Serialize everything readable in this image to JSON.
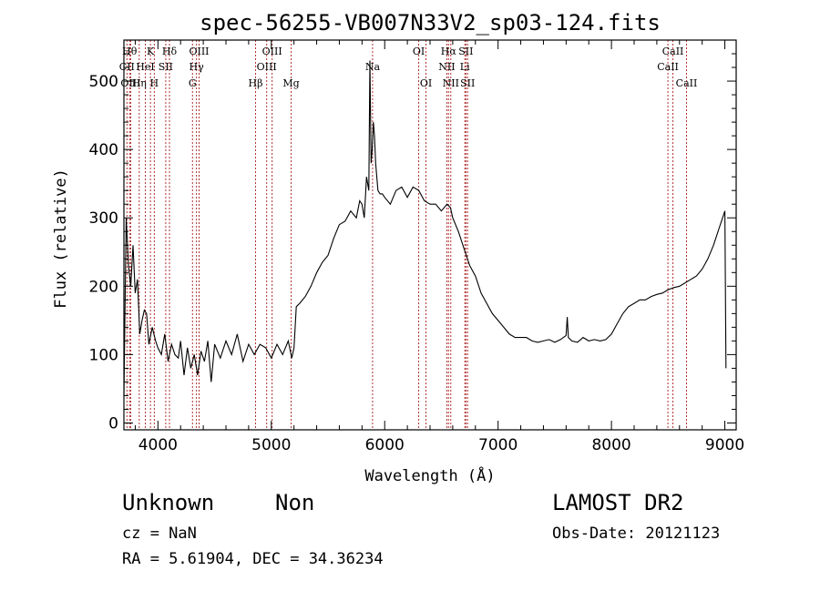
{
  "chart_data": {
    "type": "line",
    "title": "spec-56255-VB007N33V2_sp03-124.fits",
    "xlabel": "Wavelength (Å)",
    "ylabel": "Flux (relative)",
    "xlim": [
      3700,
      9100
    ],
    "ylim": [
      -10,
      560
    ],
    "x_ticks": [
      4000,
      5000,
      6000,
      7000,
      8000,
      9000
    ],
    "y_ticks": [
      0,
      100,
      200,
      300,
      400,
      500
    ],
    "grid": false,
    "line_color": "#000000",
    "marker_color": "#b03030",
    "spectrum": {
      "x": [
        3700,
        3720,
        3740,
        3760,
        3780,
        3800,
        3820,
        3840,
        3860,
        3880,
        3900,
        3920,
        3950,
        3980,
        4000,
        4030,
        4060,
        4090,
        4120,
        4150,
        4180,
        4200,
        4230,
        4260,
        4290,
        4320,
        4350,
        4380,
        4410,
        4440,
        4470,
        4500,
        4550,
        4600,
        4650,
        4700,
        4750,
        4800,
        4850,
        4900,
        4950,
        5000,
        5050,
        5100,
        5150,
        5180,
        5200,
        5220,
        5250,
        5300,
        5350,
        5400,
        5450,
        5500,
        5550,
        5600,
        5650,
        5700,
        5750,
        5780,
        5800,
        5820,
        5840,
        5860,
        5870,
        5880,
        5890,
        5900,
        5910,
        5920,
        5940,
        5960,
        5980,
        6000,
        6050,
        6100,
        6150,
        6200,
        6250,
        6300,
        6350,
        6400,
        6450,
        6500,
        6550,
        6580,
        6600,
        6650,
        6700,
        6750,
        6800,
        6850,
        6900,
        6950,
        7000,
        7050,
        7100,
        7150,
        7200,
        7250,
        7300,
        7350,
        7400,
        7450,
        7500,
        7550,
        7600,
        7610,
        7620,
        7650,
        7700,
        7750,
        7800,
        7850,
        7900,
        7950,
        8000,
        8050,
        8100,
        8150,
        8200,
        8250,
        8300,
        8350,
        8400,
        8450,
        8500,
        8550,
        8600,
        8650,
        8700,
        8750,
        8800,
        8850,
        8900,
        8950,
        8980,
        9000,
        9010
      ],
      "y": [
        40,
        300,
        230,
        200,
        260,
        190,
        210,
        130,
        150,
        165,
        160,
        115,
        140,
        120,
        110,
        100,
        130,
        90,
        115,
        100,
        95,
        120,
        70,
        110,
        80,
        100,
        70,
        105,
        90,
        120,
        60,
        115,
        95,
        120,
        100,
        130,
        90,
        115,
        100,
        115,
        110,
        95,
        115,
        100,
        120,
        95,
        110,
        170,
        175,
        185,
        200,
        220,
        235,
        245,
        270,
        290,
        295,
        310,
        300,
        325,
        320,
        300,
        360,
        340,
        530,
        380,
        400,
        440,
        420,
        380,
        340,
        335,
        335,
        330,
        320,
        340,
        345,
        330,
        345,
        340,
        325,
        320,
        320,
        310,
        320,
        315,
        300,
        280,
        255,
        230,
        215,
        190,
        175,
        160,
        150,
        140,
        130,
        125,
        125,
        125,
        120,
        118,
        120,
        122,
        118,
        122,
        128,
        155,
        125,
        120,
        118,
        125,
        120,
        122,
        120,
        122,
        130,
        145,
        160,
        170,
        175,
        180,
        180,
        185,
        188,
        190,
        195,
        198,
        200,
        205,
        210,
        215,
        225,
        240,
        260,
        285,
        300,
        310,
        80
      ]
    },
    "line_markers": [
      {
        "name": "CII",
        "x": 3727,
        "row": 1
      },
      {
        "name": "Hθ",
        "x": 3750,
        "row": 0
      },
      {
        "name": "OIII",
        "x": 3760,
        "row": 2
      },
      {
        "name": "Hη",
        "x": 3835,
        "row": 2
      },
      {
        "name": "HeI",
        "x": 3889,
        "row": 1
      },
      {
        "name": "K",
        "x": 3934,
        "row": 0
      },
      {
        "name": "H",
        "x": 3968,
        "row": 2
      },
      {
        "name": "SII",
        "x": 4069,
        "row": 1
      },
      {
        "name": "Hδ",
        "x": 4102,
        "row": 0
      },
      {
        "name": "Hγ",
        "x": 4340,
        "row": 1
      },
      {
        "name": "OIII",
        "x": 4363,
        "row": 0
      },
      {
        "name": "G",
        "x": 4305,
        "row": 2
      },
      {
        "name": "Hβ",
        "x": 4861,
        "row": 2
      },
      {
        "name": "OIII",
        "x": 4959,
        "row": 1
      },
      {
        "name": "OIII",
        "x": 5007,
        "row": 0
      },
      {
        "name": "Mg",
        "x": 5175,
        "row": 2
      },
      {
        "name": "Na",
        "x": 5893,
        "row": 1
      },
      {
        "name": "OI",
        "x": 6300,
        "row": 0
      },
      {
        "name": "OI",
        "x": 6364,
        "row": 2
      },
      {
        "name": "NII",
        "x": 6548,
        "row": 1
      },
      {
        "name": "Hα",
        "x": 6563,
        "row": 0
      },
      {
        "name": "NII",
        "x": 6583,
        "row": 2
      },
      {
        "name": "Li",
        "x": 6707,
        "row": 1
      },
      {
        "name": "SII",
        "x": 6716,
        "row": 0
      },
      {
        "name": "SII",
        "x": 6731,
        "row": 2
      },
      {
        "name": "CaII",
        "x": 8498,
        "row": 1
      },
      {
        "name": "CaII",
        "x": 8542,
        "row": 0
      },
      {
        "name": "CaII",
        "x": 8662,
        "row": 2
      }
    ]
  },
  "info": {
    "object_class": "Unknown",
    "object_subclass": "Non",
    "cz": "cz = NaN",
    "radec": "RA =   5.61904, DEC =  34.36234",
    "survey": "LAMOST DR2",
    "obs_date": "Obs-Date: 20121123"
  }
}
